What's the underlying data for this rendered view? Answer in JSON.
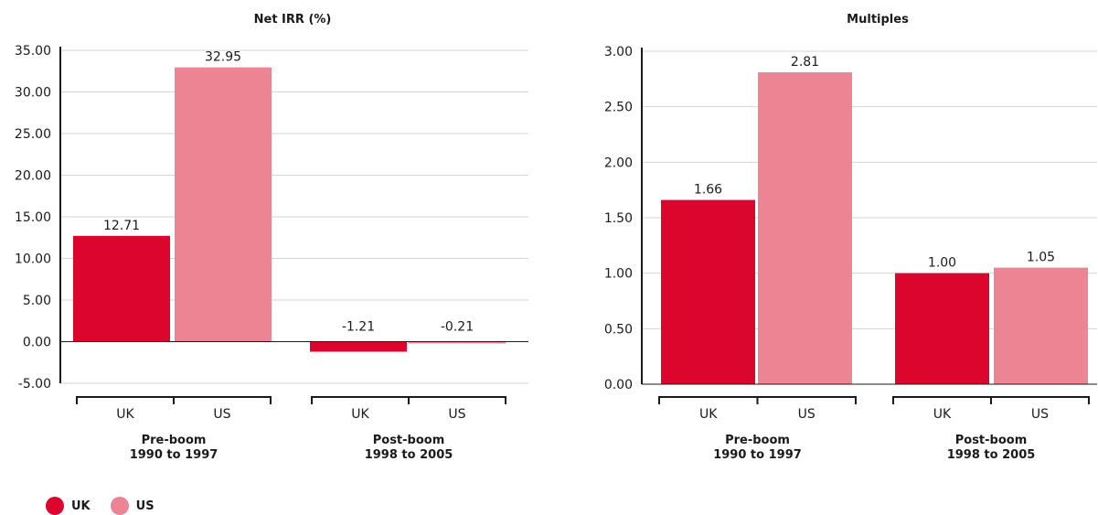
{
  "colors": {
    "uk": "#dc052d",
    "us": "#ec8493",
    "grid": "#d3d3d3",
    "axis": "#1a1a1a"
  },
  "legend": {
    "uk": "UK",
    "us": "US"
  },
  "chart_data": [
    {
      "type": "bar",
      "title": "Net IRR (%)",
      "ylim": [
        -5,
        35
      ],
      "yticks": [
        "35.00",
        "30.00",
        "25.00",
        "20.00",
        "15.00",
        "10.00",
        "5.00",
        "0.00",
        "-5.00"
      ],
      "groups": [
        {
          "label_line1": "Pre-boom",
          "label_line2": "1990 to 1997",
          "categories": [
            "UK",
            "US"
          ]
        },
        {
          "label_line1": "Post-boom",
          "label_line2": "1998 to 2005",
          "categories": [
            "UK",
            "US"
          ]
        }
      ],
      "series": [
        {
          "name": "UK",
          "values": [
            12.71,
            -1.21
          ],
          "labels": [
            "12.71",
            "-1.21"
          ]
        },
        {
          "name": "US",
          "values": [
            32.95,
            -0.21
          ],
          "labels": [
            "32.95",
            "-0.21"
          ]
        }
      ],
      "grid": true
    },
    {
      "type": "bar",
      "title": "Multiples",
      "ylim": [
        0,
        3
      ],
      "yticks": [
        "3.00",
        "2.50",
        "2.00",
        "1.50",
        "1.00",
        "0.50",
        "0.00"
      ],
      "groups": [
        {
          "label_line1": "Pre-boom",
          "label_line2": "1990 to 1997",
          "categories": [
            "UK",
            "US"
          ]
        },
        {
          "label_line1": "Post-boom",
          "label_line2": "1998 to 2005",
          "categories": [
            "UK",
            "US"
          ]
        }
      ],
      "series": [
        {
          "name": "UK",
          "values": [
            1.66,
            1.0
          ],
          "labels": [
            "1.66",
            "1.00"
          ]
        },
        {
          "name": "US",
          "values": [
            2.81,
            1.05
          ],
          "labels": [
            "2.81",
            "1.05"
          ]
        }
      ],
      "grid": true
    }
  ]
}
